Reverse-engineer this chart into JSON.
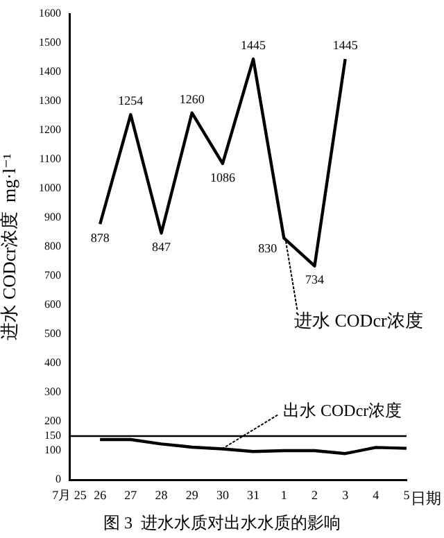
{
  "chart_data": {
    "type": "line",
    "ylabel": "进水 CODcr浓度  mg·l⁻¹",
    "xlabel": "日期",
    "categories": [
      "7月 25",
      "26",
      "27",
      "28",
      "29",
      "30",
      "31",
      "1",
      "2",
      "3",
      "4",
      "5"
    ],
    "series": [
      {
        "color": "#000000",
        "values": [
          null,
          878,
          1254,
          847,
          1260,
          1086,
          1445,
          830,
          734,
          1445,
          null,
          null
        ],
        "value_labels": [
          null,
          "878",
          "1254",
          "847",
          "1260",
          "1086",
          "1445",
          "830",
          "734",
          "1445",
          null,
          null
        ]
      },
      {
        "color": "#000000",
        "values": [
          null,
          138,
          138,
          123,
          112,
          106,
          97,
          100,
          100,
          90,
          111,
          108
        ]
      }
    ],
    "ylim": [
      0,
      1600
    ],
    "yticks": [
      0,
      100,
      150,
      200,
      300,
      400,
      500,
      600,
      700,
      800,
      900,
      1000,
      1100,
      1200,
      1300,
      1400,
      1500,
      1600
    ],
    "ref_lines": [
      {
        "axis": "y",
        "value": 150,
        "color": "#000000"
      }
    ],
    "annotations": [
      {
        "text": "进水 CODcr浓度",
        "x": "1",
        "y": 830
      },
      {
        "text": "出水 CODcr浓度",
        "x": "30",
        "y": 106
      },
      "图 3  进水水质对出水水质的影响"
    ],
    "legend": false,
    "grid": false,
    "marker": "none",
    "line_style": "solid"
  }
}
